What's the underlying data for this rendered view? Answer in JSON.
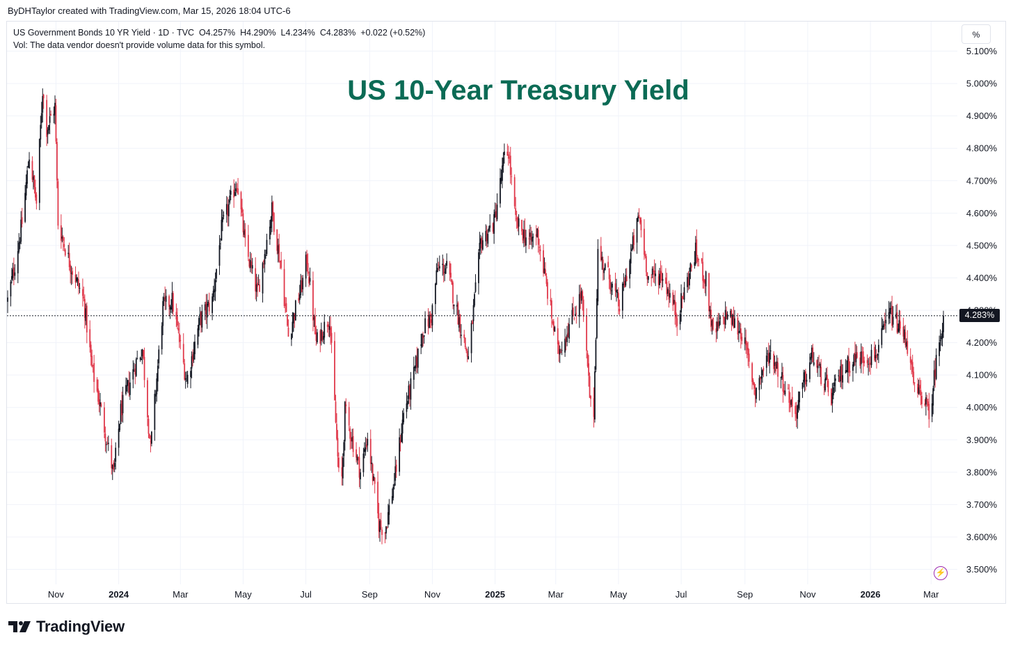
{
  "attribution": "ByDHTaylor created with TradingView.com, Mar 15, 2026 18:04 UTC-6",
  "legend": {
    "symbol": "US Government Bonds 10 YR Yield · 1D · TVC",
    "open": "O4.257%",
    "high": "H4.290%",
    "low": "L4.234%",
    "close": "C4.283%",
    "change": "+0.022 (+0.52%)",
    "volume_note": "Vol: The data vendor doesn't provide volume data for this symbol."
  },
  "unit_button": "%",
  "last_price_label": "4.283%",
  "brand": "TradingView",
  "colors": {
    "up": "#131722",
    "down": "#e0394b",
    "title": "#0b6b55",
    "grid": "#f0f3fa"
  },
  "chart_data": {
    "type": "candlestick",
    "title": "US 10-Year Treasury Yield",
    "y_unit": "%",
    "ylim": [
      3.47,
      5.14
    ],
    "y_ticks": [
      "5.100%",
      "5.000%",
      "4.900%",
      "4.800%",
      "4.700%",
      "4.600%",
      "4.500%",
      "4.400%",
      "4.300%",
      "4.200%",
      "4.100%",
      "4.000%",
      "3.900%",
      "3.800%",
      "3.700%",
      "3.600%",
      "3.500%"
    ],
    "x_ticks": [
      {
        "label": "Nov",
        "date": "2023-11-01",
        "bold": false
      },
      {
        "label": "2024",
        "date": "2024-01-01",
        "bold": true
      },
      {
        "label": "Mar",
        "date": "2024-03-01",
        "bold": false
      },
      {
        "label": "May",
        "date": "2024-05-01",
        "bold": false
      },
      {
        "label": "Jul",
        "date": "2024-07-01",
        "bold": false
      },
      {
        "label": "Sep",
        "date": "2024-09-01",
        "bold": false
      },
      {
        "label": "Nov",
        "date": "2024-11-01",
        "bold": false
      },
      {
        "label": "2025",
        "date": "2025-01-01",
        "bold": true
      },
      {
        "label": "Mar",
        "date": "2025-03-01",
        "bold": false
      },
      {
        "label": "May",
        "date": "2025-05-01",
        "bold": false
      },
      {
        "label": "Jul",
        "date": "2025-07-01",
        "bold": false
      },
      {
        "label": "Sep",
        "date": "2025-09-01",
        "bold": false
      },
      {
        "label": "Nov",
        "date": "2025-11-01",
        "bold": false
      },
      {
        "label": "2026",
        "date": "2026-01-01",
        "bold": true
      },
      {
        "label": "Mar",
        "date": "2026-03-01",
        "bold": false
      }
    ],
    "date_range": [
      "2023-09-15",
      "2026-03-13"
    ],
    "last_value": 4.283,
    "close_path": [
      {
        "date": "2023-09-15",
        "value": 4.33
      },
      {
        "date": "2023-09-22",
        "value": 4.44
      },
      {
        "date": "2023-09-29",
        "value": 4.57
      },
      {
        "date": "2023-10-06",
        "value": 4.78
      },
      {
        "date": "2023-10-13",
        "value": 4.63
      },
      {
        "date": "2023-10-19",
        "value": 4.98
      },
      {
        "date": "2023-10-23",
        "value": 4.86
      },
      {
        "date": "2023-10-31",
        "value": 4.93
      },
      {
        "date": "2023-11-03",
        "value": 4.57
      },
      {
        "date": "2023-11-14",
        "value": 4.45
      },
      {
        "date": "2023-11-28",
        "value": 4.33
      },
      {
        "date": "2023-12-06",
        "value": 4.12
      },
      {
        "date": "2023-12-13",
        "value": 4.02
      },
      {
        "date": "2023-12-27",
        "value": 3.79
      },
      {
        "date": "2024-01-03",
        "value": 3.99
      },
      {
        "date": "2024-01-18",
        "value": 4.14
      },
      {
        "date": "2024-01-24",
        "value": 4.18
      },
      {
        "date": "2024-02-01",
        "value": 3.87
      },
      {
        "date": "2024-02-13",
        "value": 4.31
      },
      {
        "date": "2024-02-22",
        "value": 4.33
      },
      {
        "date": "2024-03-07",
        "value": 4.08
      },
      {
        "date": "2024-03-20",
        "value": 4.27
      },
      {
        "date": "2024-04-01",
        "value": 4.33
      },
      {
        "date": "2024-04-10",
        "value": 4.55
      },
      {
        "date": "2024-04-25",
        "value": 4.7
      },
      {
        "date": "2024-05-03",
        "value": 4.5
      },
      {
        "date": "2024-05-15",
        "value": 4.35
      },
      {
        "date": "2024-05-29",
        "value": 4.61
      },
      {
        "date": "2024-06-07",
        "value": 4.43
      },
      {
        "date": "2024-06-14",
        "value": 4.22
      },
      {
        "date": "2024-06-28",
        "value": 4.39
      },
      {
        "date": "2024-07-02",
        "value": 4.46
      },
      {
        "date": "2024-07-11",
        "value": 4.2
      },
      {
        "date": "2024-07-24",
        "value": 4.28
      },
      {
        "date": "2024-08-02",
        "value": 3.79
      },
      {
        "date": "2024-08-05",
        "value": 3.78
      },
      {
        "date": "2024-08-08",
        "value": 3.99
      },
      {
        "date": "2024-08-23",
        "value": 3.8
      },
      {
        "date": "2024-08-30",
        "value": 3.91
      },
      {
        "date": "2024-09-10",
        "value": 3.64
      },
      {
        "date": "2024-09-16",
        "value": 3.62
      },
      {
        "date": "2024-09-26",
        "value": 3.79
      },
      {
        "date": "2024-10-04",
        "value": 3.98
      },
      {
        "date": "2024-10-14",
        "value": 4.1
      },
      {
        "date": "2024-10-23",
        "value": 4.24
      },
      {
        "date": "2024-10-31",
        "value": 4.28
      },
      {
        "date": "2024-11-06",
        "value": 4.43
      },
      {
        "date": "2024-11-15",
        "value": 4.43
      },
      {
        "date": "2024-12-06",
        "value": 4.15
      },
      {
        "date": "2024-12-18",
        "value": 4.51
      },
      {
        "date": "2024-12-31",
        "value": 4.57
      },
      {
        "date": "2025-01-10",
        "value": 4.77
      },
      {
        "date": "2025-01-14",
        "value": 4.79
      },
      {
        "date": "2025-01-21",
        "value": 4.57
      },
      {
        "date": "2025-02-04",
        "value": 4.51
      },
      {
        "date": "2025-02-11",
        "value": 4.54
      },
      {
        "date": "2025-03-03",
        "value": 4.17
      },
      {
        "date": "2025-03-10",
        "value": 4.22
      },
      {
        "date": "2025-03-26",
        "value": 4.35
      },
      {
        "date": "2025-04-04",
        "value": 4.0
      },
      {
        "date": "2025-04-07",
        "value": 3.99
      },
      {
        "date": "2025-04-11",
        "value": 4.48
      },
      {
        "date": "2025-04-22",
        "value": 4.4
      },
      {
        "date": "2025-05-02",
        "value": 4.31
      },
      {
        "date": "2025-05-21",
        "value": 4.59
      },
      {
        "date": "2025-05-30",
        "value": 4.4
      },
      {
        "date": "2025-06-13",
        "value": 4.41
      },
      {
        "date": "2025-06-27",
        "value": 4.28
      },
      {
        "date": "2025-07-15",
        "value": 4.48
      },
      {
        "date": "2025-07-25",
        "value": 4.39
      },
      {
        "date": "2025-08-01",
        "value": 4.22
      },
      {
        "date": "2025-08-14",
        "value": 4.29
      },
      {
        "date": "2025-08-29",
        "value": 4.23
      },
      {
        "date": "2025-09-11",
        "value": 4.05
      },
      {
        "date": "2025-09-25",
        "value": 4.17
      },
      {
        "date": "2025-10-03",
        "value": 4.12
      },
      {
        "date": "2025-10-20",
        "value": 3.98
      },
      {
        "date": "2025-11-05",
        "value": 4.16
      },
      {
        "date": "2025-11-24",
        "value": 4.03
      },
      {
        "date": "2025-12-04",
        "value": 4.11
      },
      {
        "date": "2025-12-16",
        "value": 4.15
      },
      {
        "date": "2026-01-06",
        "value": 4.16
      },
      {
        "date": "2026-01-20",
        "value": 4.29
      },
      {
        "date": "2026-01-28",
        "value": 4.25
      },
      {
        "date": "2026-02-05",
        "value": 4.21
      },
      {
        "date": "2026-02-13",
        "value": 4.05
      },
      {
        "date": "2026-02-23",
        "value": 4.03
      },
      {
        "date": "2026-02-27",
        "value": 3.96
      },
      {
        "date": "2026-03-05",
        "value": 4.12
      },
      {
        "date": "2026-03-13",
        "value": 4.283
      }
    ]
  }
}
